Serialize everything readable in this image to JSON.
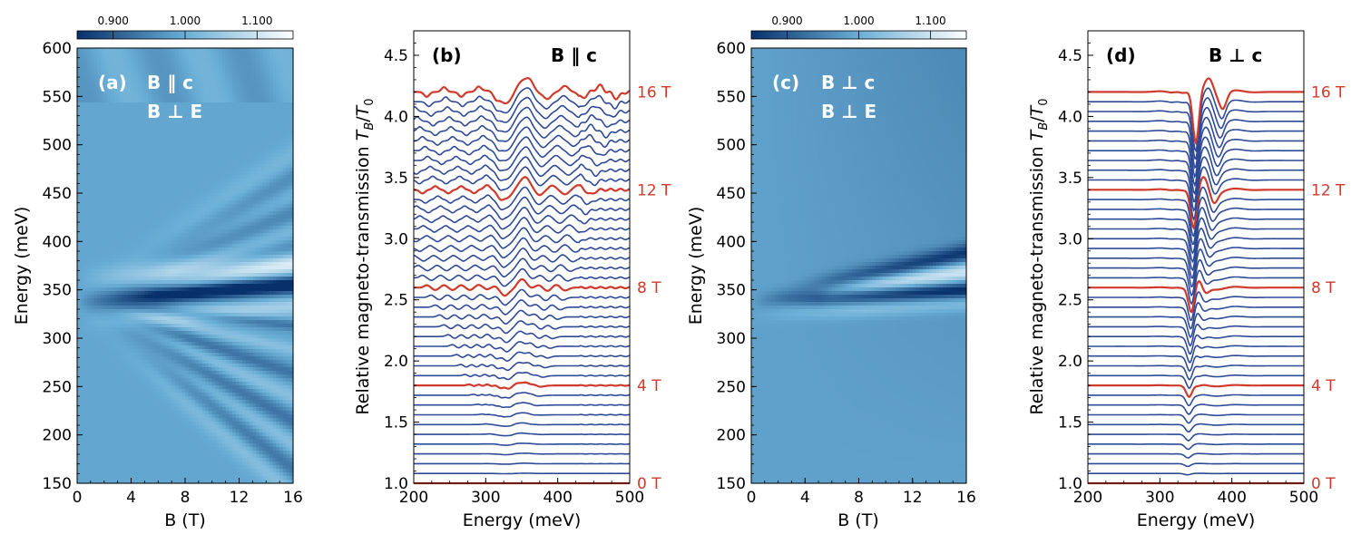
{
  "colors": {
    "blue_trace": "#2e4a96",
    "red_trace": "#d03a2c",
    "field_label": "#d03a2c",
    "panel_text": "#ffffff",
    "map_dark": "#08306b",
    "map_mid": "#6aaed6",
    "map_light": "#ffffff"
  },
  "chart_data": [
    {
      "type": "heatmap",
      "panel_label": "(a)",
      "annotation": [
        "B ‖ c",
        "B ⊥ E"
      ],
      "xlabel": "B (T)",
      "ylabel": "Energy (meV)",
      "xlim": [
        0,
        16
      ],
      "ylim": [
        150,
        600
      ],
      "xticks": [
        0,
        4,
        8,
        12,
        16
      ],
      "yticks": [
        150,
        200,
        250,
        300,
        350,
        400,
        450,
        500,
        550,
        600
      ],
      "colorbar": {
        "range": [
          0.85,
          1.15
        ],
        "ticks": [
          "0.900",
          "1.000",
          "1.100"
        ]
      },
      "features": [
        {
          "name": "strong_line",
          "energy_at_0T": 338,
          "energy_at_16T": 355,
          "contrast": "dark"
        },
        {
          "name": "fan_upper",
          "energy_at_0T": 338,
          "slope_meV_per_T": 4.5
        },
        {
          "name": "fan_lower",
          "energy_at_0T": 338,
          "slope_meV_per_T": -6
        }
      ]
    },
    {
      "type": "line",
      "panel_label": "(b)",
      "annotation": "B ‖ c",
      "xlabel": "Energy (meV)",
      "ylabel": "Relative magneto-transmission T_B/T_0",
      "xlim": [
        200,
        500
      ],
      "ylim": [
        1.0,
        4.7
      ],
      "xticks": [
        200,
        300,
        400,
        500
      ],
      "yticks": [
        "1.0",
        "1.5",
        "2.0",
        "2.5",
        "3.0",
        "3.5",
        "4.0",
        "4.5"
      ],
      "field_step_T": 0.4,
      "offset_per_T": 0.2,
      "n_traces": 41,
      "highlighted_fields_T": [
        0,
        4,
        8,
        12,
        16
      ],
      "field_labels": [
        "0 T",
        "4 T",
        "8 T",
        "12 T",
        "16 T"
      ]
    },
    {
      "type": "heatmap",
      "panel_label": "(c)",
      "annotation": [
        "B ⊥ c",
        "B ⊥ E"
      ],
      "xlabel": "B (T)",
      "ylabel": "Energy (meV)",
      "xlim": [
        0,
        16
      ],
      "ylim": [
        150,
        600
      ],
      "xticks": [
        0,
        4,
        8,
        12,
        16
      ],
      "yticks": [
        150,
        200,
        250,
        300,
        350,
        400,
        450,
        500,
        550,
        600
      ],
      "colorbar": {
        "range": [
          0.85,
          1.15
        ],
        "ticks": [
          "0.900",
          "1.000",
          "1.100"
        ]
      },
      "features": [
        {
          "name": "dark_line_1",
          "energy_at_0T": 338,
          "energy_at_16T": 350,
          "contrast": "dark"
        },
        {
          "name": "dark_line_2",
          "energy_at_0T": 338,
          "energy_at_16T": 388,
          "contrast": "dark"
        }
      ]
    },
    {
      "type": "line",
      "panel_label": "(d)",
      "annotation": "B ⊥ c",
      "xlabel": "Energy (meV)",
      "ylabel": "Relative magneto-transmission T_B/T_0",
      "xlim": [
        200,
        500
      ],
      "ylim": [
        1.0,
        4.7
      ],
      "xticks": [
        200,
        300,
        400,
        500
      ],
      "yticks": [
        "1.0",
        "1.5",
        "2.0",
        "2.5",
        "3.0",
        "3.5",
        "4.0",
        "4.5"
      ],
      "field_step_T": 0.4,
      "offset_per_T": 0.2,
      "n_traces": 41,
      "highlighted_fields_T": [
        0,
        4,
        8,
        12,
        16
      ],
      "field_labels": [
        "0 T",
        "4 T",
        "8 T",
        "12 T",
        "16 T"
      ]
    }
  ]
}
